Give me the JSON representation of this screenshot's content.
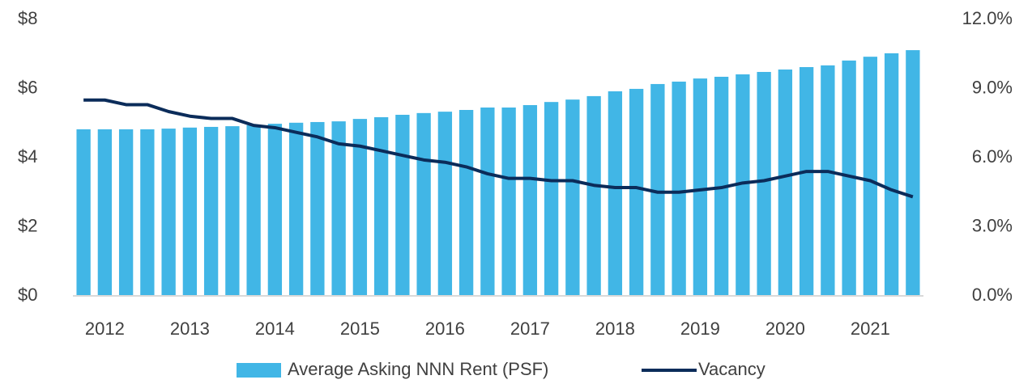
{
  "chart_data": {
    "type": "bar_line",
    "categories": [
      "2012",
      null,
      null,
      null,
      "2013",
      null,
      null,
      null,
      "2014",
      null,
      null,
      null,
      "2015",
      null,
      null,
      null,
      "2016",
      null,
      null,
      null,
      "2017",
      null,
      null,
      null,
      "2018",
      null,
      null,
      null,
      "2019",
      null,
      null,
      null,
      "2020",
      null,
      null,
      null,
      "2021",
      null,
      null,
      null
    ],
    "series": [
      {
        "name": "Average Asking NNN Rent (PSF)",
        "type": "bar",
        "color": "#41b6e6",
        "values": [
          4.82,
          4.82,
          4.82,
          4.82,
          4.84,
          4.87,
          4.89,
          4.91,
          4.94,
          4.98,
          5.01,
          5.03,
          5.05,
          5.12,
          5.17,
          5.24,
          5.29,
          5.33,
          5.38,
          5.45,
          5.45,
          5.52,
          5.61,
          5.68,
          5.78,
          5.92,
          5.99,
          6.13,
          6.2,
          6.29,
          6.34,
          6.41,
          6.48,
          6.55,
          6.62,
          6.67,
          6.81,
          6.92,
          7.02,
          7.11
        ]
      },
      {
        "name": "Vacancy",
        "type": "line",
        "axis": "y2",
        "color": "#0b2c5a",
        "values": [
          8.5,
          8.5,
          8.3,
          8.3,
          8.0,
          7.8,
          7.7,
          7.7,
          7.4,
          7.3,
          7.1,
          6.9,
          6.6,
          6.5,
          6.3,
          6.1,
          5.9,
          5.8,
          5.6,
          5.3,
          5.1,
          5.1,
          5.0,
          5.0,
          4.8,
          4.7,
          4.7,
          4.5,
          4.5,
          4.6,
          4.7,
          4.9,
          5.0,
          5.2,
          5.4,
          5.4,
          5.2,
          5.0,
          4.6,
          4.3
        ]
      }
    ],
    "ylim": [
      0,
      8
    ],
    "yticks": [
      {
        "value": 0,
        "label": "$0"
      },
      {
        "value": 2,
        "label": "$2"
      },
      {
        "value": 4,
        "label": "$4"
      },
      {
        "value": 6,
        "label": "$6"
      },
      {
        "value": 8,
        "label": "$8"
      }
    ],
    "y2lim": [
      0,
      12
    ],
    "y2ticks": [
      {
        "value": 0,
        "label": "0.0%"
      },
      {
        "value": 3,
        "label": "3.0%"
      },
      {
        "value": 6,
        "label": "6.0%"
      },
      {
        "value": 9,
        "label": "9.0%"
      },
      {
        "value": 12,
        "label": "12.0%"
      }
    ],
    "grid": false,
    "legend": "bottom"
  }
}
